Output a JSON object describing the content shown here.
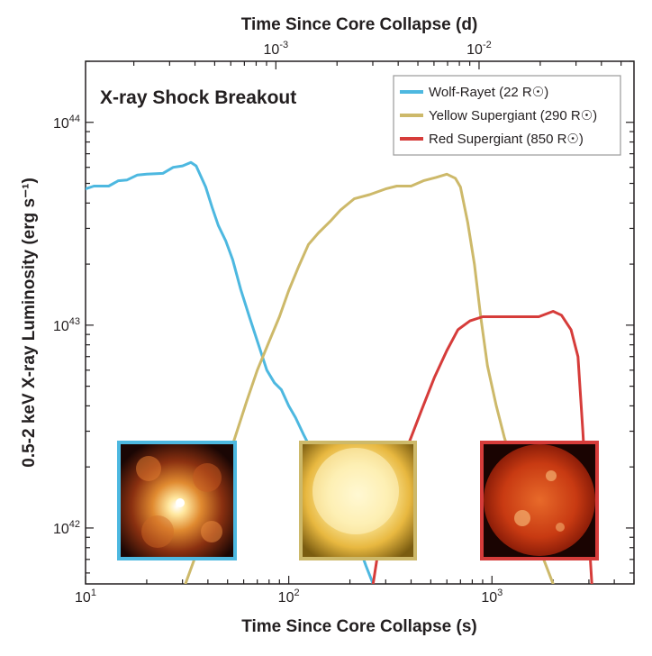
{
  "chart_data": {
    "type": "line",
    "title": "X-ray Shock Breakout",
    "xlabel": "Time Since Core Collapse (s)",
    "x2label": "Time Since Core Collapse (d)",
    "ylabel": "0.5-2 keV X-ray Luminosity (erg s⁻¹)",
    "xscale": "log",
    "yscale": "log",
    "xlim": [
      10,
      5000
    ],
    "ylim": [
      5.3e+41,
      2e+44
    ],
    "x_ticks": [
      {
        "value": 10,
        "base": "10",
        "exp": "1"
      },
      {
        "value": 100,
        "base": "10",
        "exp": "2"
      },
      {
        "value": 1000,
        "base": "10",
        "exp": "3"
      }
    ],
    "x2_ticks": [
      {
        "value_days": 0.001,
        "base": "10",
        "exp": "-3"
      },
      {
        "value_days": 0.01,
        "base": "10",
        "exp": "-2"
      }
    ],
    "y_ticks": [
      {
        "value": 1e+42,
        "base": "10",
        "exp": "42"
      },
      {
        "value": 1e+43,
        "base": "10",
        "exp": "43"
      },
      {
        "value": 1e+44,
        "base": "10",
        "exp": "44"
      }
    ],
    "legend_position": "top-right",
    "series": [
      {
        "name": "Wolf-Rayet (22 R☉)",
        "color": "#4db8e0",
        "points": [
          [
            10,
            4.7e+43
          ],
          [
            11,
            4.85e+43
          ],
          [
            13,
            4.85e+43
          ],
          [
            14.5,
            5.15e+43
          ],
          [
            16,
            5.2e+43
          ],
          [
            18,
            5.5e+43
          ],
          [
            20,
            5.55e+43
          ],
          [
            24,
            5.6e+43
          ],
          [
            27,
            6e+43
          ],
          [
            30,
            6.1e+43
          ],
          [
            33,
            6.35e+43
          ],
          [
            35,
            6.1e+43
          ],
          [
            37,
            5.4e+43
          ],
          [
            39,
            4.8e+43
          ],
          [
            42,
            3.8e+43
          ],
          [
            45,
            3.1e+43
          ],
          [
            49,
            2.6e+43
          ],
          [
            53,
            2.1e+43
          ],
          [
            58,
            1.5e+43
          ],
          [
            64,
            1.1e+43
          ],
          [
            71,
            8e+42
          ],
          [
            78,
            6e+42
          ],
          [
            85,
            5.2e+42
          ],
          [
            92,
            4.8e+42
          ],
          [
            100,
            4e+42
          ],
          [
            108,
            3.5e+42
          ],
          [
            118,
            2.9e+42
          ],
          [
            130,
            2.4e+42
          ],
          [
            145,
            2e+42
          ],
          [
            165,
            1.6e+42
          ],
          [
            190,
            1.2e+42
          ],
          [
            215,
            8.8e+41
          ],
          [
            240,
            6.5e+41
          ],
          [
            260,
            5.3e+41
          ]
        ]
      },
      {
        "name": "Yellow Supergiant (290 R☉)",
        "color": "#cdb96a",
        "points": [
          [
            31,
            5.3e+41
          ],
          [
            36,
            8e+41
          ],
          [
            42,
            1.25e+42
          ],
          [
            48,
            1.9e+42
          ],
          [
            55,
            2.9e+42
          ],
          [
            62,
            4.2e+42
          ],
          [
            70,
            6e+42
          ],
          [
            80,
            8.3e+42
          ],
          [
            90,
            1.1e+43
          ],
          [
            100,
            1.48e+43
          ],
          [
            112,
            1.95e+43
          ],
          [
            125,
            2.5e+43
          ],
          [
            140,
            2.85e+43
          ],
          [
            160,
            3.25e+43
          ],
          [
            180,
            3.7e+43
          ],
          [
            210,
            4.2e+43
          ],
          [
            250,
            4.4e+43
          ],
          [
            300,
            4.7e+43
          ],
          [
            340,
            4.85e+43
          ],
          [
            400,
            4.85e+43
          ],
          [
            460,
            5.15e+43
          ],
          [
            530,
            5.35e+43
          ],
          [
            600,
            5.55e+43
          ],
          [
            660,
            5.3e+43
          ],
          [
            700,
            4.8e+43
          ],
          [
            760,
            3.2e+43
          ],
          [
            820,
            2e+43
          ],
          [
            880,
            1.1e+43
          ],
          [
            950,
            6.3e+42
          ],
          [
            1050,
            4e+42
          ],
          [
            1150,
            2.8e+42
          ],
          [
            1300,
            1.9e+42
          ],
          [
            1500,
            1.15e+42
          ],
          [
            1750,
            7.5e+41
          ],
          [
            2000,
            5.3e+41
          ]
        ]
      },
      {
        "name": "Red Supergiant (850 R☉)",
        "color": "#d63c3a",
        "points": [
          [
            260,
            5.3e+41
          ],
          [
            280,
            8.5e+41
          ],
          [
            310,
            1.35e+42
          ],
          [
            350,
            2e+42
          ],
          [
            400,
            2.8e+42
          ],
          [
            450,
            3.8e+42
          ],
          [
            520,
            5.5e+42
          ],
          [
            600,
            7.5e+42
          ],
          [
            680,
            9.5e+42
          ],
          [
            780,
            1.05e+43
          ],
          [
            900,
            1.1e+43
          ],
          [
            1100,
            1.1e+43
          ],
          [
            1400,
            1.1e+43
          ],
          [
            1700,
            1.1e+43
          ],
          [
            2000,
            1.17e+43
          ],
          [
            2200,
            1.12e+43
          ],
          [
            2450,
            9.5e+42
          ],
          [
            2650,
            7e+42
          ],
          [
            2800,
            3e+42
          ],
          [
            2950,
            1.2e+42
          ],
          [
            3100,
            5.3e+41
          ]
        ]
      }
    ]
  },
  "images": [
    {
      "name": "wolf-rayet-image",
      "border": "#4db8e0"
    },
    {
      "name": "yellow-supergiant-image",
      "border": "#cdb96a"
    },
    {
      "name": "red-supergiant-image",
      "border": "#d63c3a"
    }
  ]
}
